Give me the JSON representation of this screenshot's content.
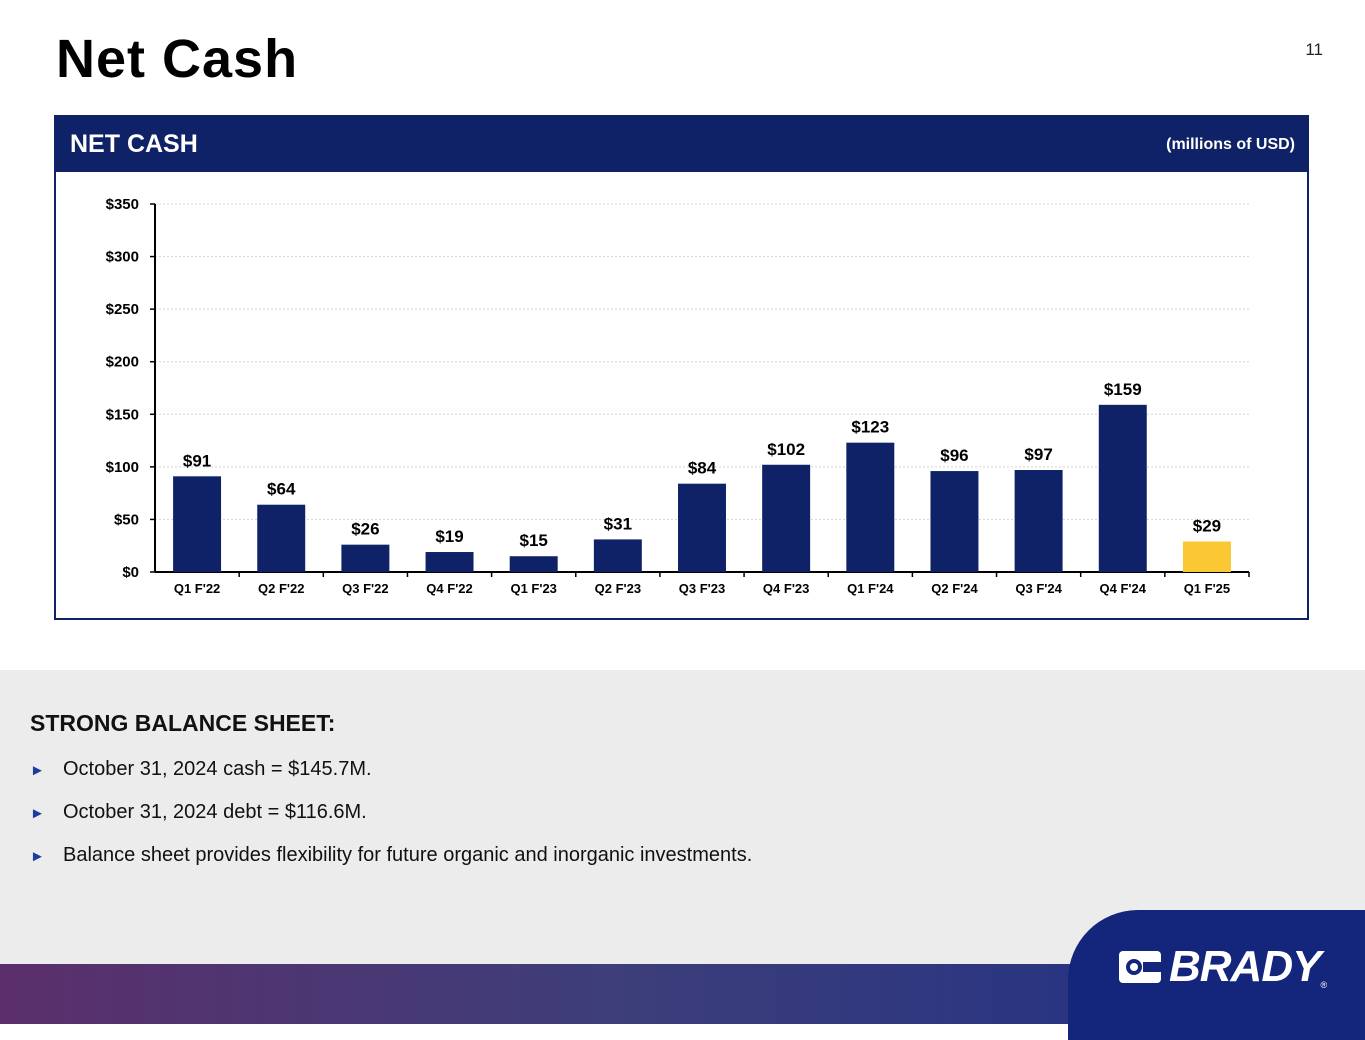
{
  "page": {
    "title": "Net Cash",
    "number": "11"
  },
  "panel": {
    "title": "NET CASH",
    "unit": "(millions of USD)"
  },
  "chart_data": {
    "type": "bar",
    "categories": [
      "Q1 F'22",
      "Q2 F'22",
      "Q3 F'22",
      "Q4 F'22",
      "Q1 F'23",
      "Q2 F'23",
      "Q3 F'23",
      "Q4 F'23",
      "Q1 F'24",
      "Q2 F'24",
      "Q3 F'24",
      "Q4 F'24",
      "Q1 F'25"
    ],
    "values": [
      91,
      64,
      26,
      19,
      15,
      31,
      84,
      102,
      123,
      96,
      97,
      159,
      29
    ],
    "labels": [
      "$91",
      "$64",
      "$26",
      "$19",
      "$15",
      "$31",
      "$84",
      "$102",
      "$123",
      "$96",
      "$97",
      "$159",
      "$29"
    ],
    "highlight_index": 12,
    "colors": {
      "bar": "#0f2268",
      "highlight": "#fac832",
      "grid": "#d4d4d4",
      "axis": "#000000"
    },
    "ylim": [
      0,
      350
    ],
    "yticks": [
      0,
      50,
      100,
      150,
      200,
      250,
      300,
      350
    ],
    "ytick_labels": [
      "$0",
      "$50",
      "$100",
      "$150",
      "$200",
      "$250",
      "$300",
      "$350"
    ],
    "grid": true
  },
  "summary": {
    "heading": "STRONG BALANCE SHEET:",
    "bullets": [
      "October 31, 2024 cash = $145.7M.",
      "October 31, 2024 debt = $116.6M.",
      "Balance sheet provides flexibility for future organic and inorganic investments."
    ]
  },
  "brand": {
    "logo_text": "BRADY",
    "registered": "®"
  }
}
